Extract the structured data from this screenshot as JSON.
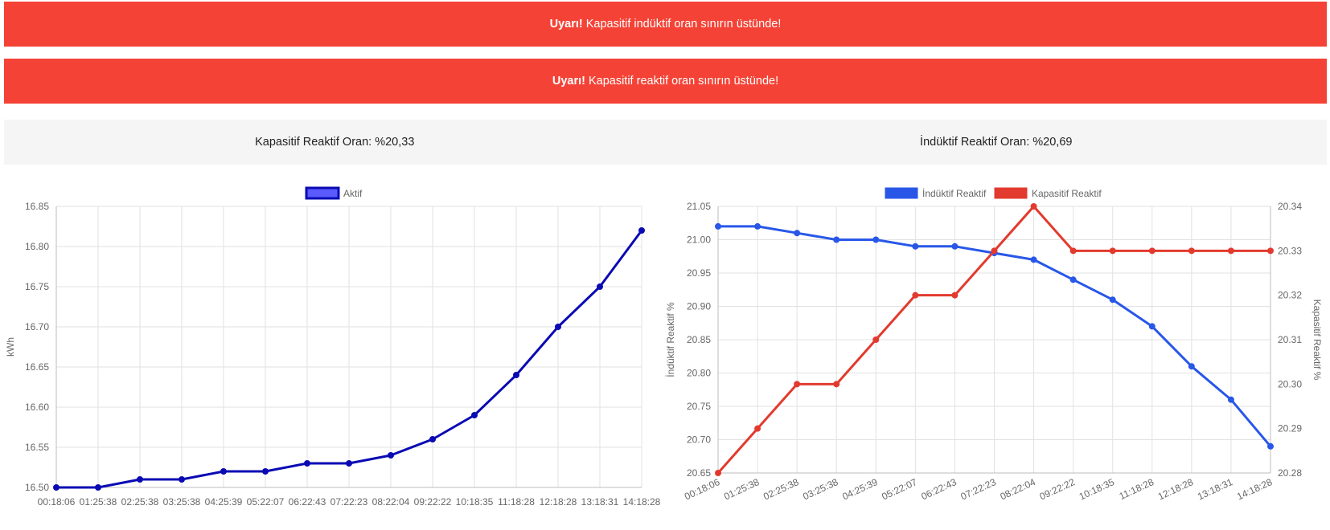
{
  "alerts": [
    {
      "strong": "Uyarı!",
      "text": "Kapasitif indüktif oran sınırın üstünde!"
    },
    {
      "strong": "Uyarı!",
      "text": "Kapasitif reaktif oran sınırın üstünde!"
    }
  ],
  "info": {
    "kapasitif": "Kapasitif Reaktif Oran: %20,33",
    "induktif": "İndüktif Reaktif Oran: %20,69"
  },
  "colors": {
    "alert": "#f44336",
    "aktif_line": "#0a0ab4",
    "aktif_fill": "#5a5aff",
    "induktif": "#2857e8",
    "kapasitif": "#e23a2e"
  },
  "chart_data": [
    {
      "type": "line",
      "title": "",
      "x": [
        "00:18:06",
        "01:25:38",
        "02:25:38",
        "03:25:38",
        "04:25:39",
        "05:22:07",
        "06:22:43",
        "07:22:23",
        "08:22:04",
        "09:22:22",
        "10:18:35",
        "11:18:28",
        "12:18:28",
        "13:18:31",
        "14:18:28"
      ],
      "series": [
        {
          "name": "Aktif",
          "values": [
            16.5,
            16.5,
            16.51,
            16.51,
            16.52,
            16.52,
            16.53,
            16.53,
            16.54,
            16.56,
            16.59,
            16.64,
            16.7,
            16.75,
            16.82
          ]
        }
      ],
      "xlabel": "",
      "ylabel": "kWh",
      "ylim": [
        16.5,
        16.85
      ],
      "yticks": [
        "16.50",
        "16.55",
        "16.60",
        "16.65",
        "16.70",
        "16.75",
        "16.80",
        "16.85"
      ],
      "grid": true,
      "legend": "top-center"
    },
    {
      "type": "line",
      "title": "",
      "x": [
        "00:18:06",
        "01:25:38",
        "02:25:38",
        "03:25:38",
        "04:25:39",
        "05:22:07",
        "06:22:43",
        "07:22:23",
        "08:22:04",
        "09:22:22",
        "10:18:35",
        "11:18:28",
        "12:18:28",
        "13:18:31",
        "14:18:28"
      ],
      "series": [
        {
          "name": "İndüktif Reaktif",
          "axis": "left",
          "values": [
            21.02,
            21.02,
            21.01,
            21.0,
            21.0,
            20.99,
            20.99,
            20.98,
            20.97,
            20.94,
            20.91,
            20.87,
            20.81,
            20.76,
            20.69
          ]
        },
        {
          "name": "Kapasitif Reaktif",
          "axis": "right",
          "values": [
            20.28,
            20.29,
            20.3,
            20.3,
            20.31,
            20.32,
            20.32,
            20.33,
            20.34,
            20.33,
            20.33,
            20.33,
            20.33,
            20.33,
            20.33
          ]
        }
      ],
      "xlabel": "",
      "ylabel": "İndüktif Reaktif %",
      "y2label": "Kapasitif Reaktif %",
      "ylim": [
        20.65,
        21.05
      ],
      "y2lim": [
        20.28,
        20.34
      ],
      "yticks": [
        "20.65",
        "20.70",
        "20.75",
        "20.80",
        "20.85",
        "20.90",
        "20.95",
        "21.00",
        "21.05"
      ],
      "y2ticks": [
        "20.28",
        "20.29",
        "20.30",
        "20.31",
        "20.32",
        "20.33",
        "20.34"
      ],
      "grid": true,
      "legend": "top-center"
    }
  ]
}
